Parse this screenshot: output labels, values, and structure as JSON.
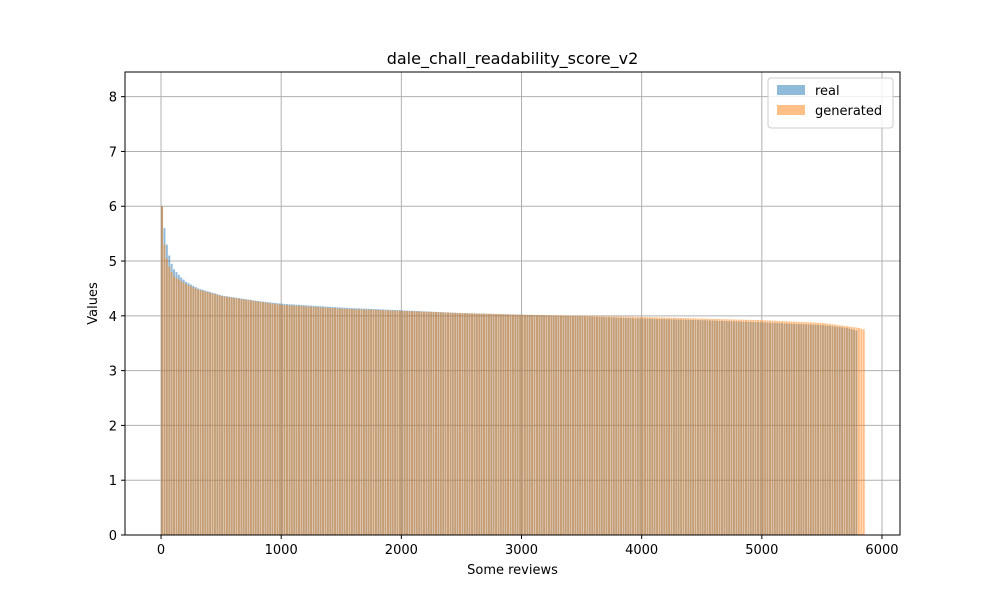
{
  "chart_data": {
    "type": "bar",
    "title": "dale_chall_readability_score_v2",
    "xlabel": "Some reviews",
    "ylabel": "Values",
    "xlim": [
      -300,
      6150
    ],
    "ylim": [
      0,
      8.45
    ],
    "xticks": [
      0,
      1000,
      2000,
      3000,
      4000,
      5000,
      6000
    ],
    "yticks": [
      0,
      1,
      2,
      3,
      4,
      5,
      6,
      7,
      8
    ],
    "grid": true,
    "legend_position": "top-right",
    "series": [
      {
        "name": "real",
        "color": "#1f77b4",
        "opacity": 0.5,
        "count": 5800,
        "points": [
          [
            0,
            6.0
          ],
          [
            20,
            5.6
          ],
          [
            40,
            5.3
          ],
          [
            60,
            5.1
          ],
          [
            80,
            4.95
          ],
          [
            100,
            4.85
          ],
          [
            150,
            4.72
          ],
          [
            200,
            4.62
          ],
          [
            300,
            4.5
          ],
          [
            500,
            4.37
          ],
          [
            800,
            4.27
          ],
          [
            1000,
            4.22
          ],
          [
            1500,
            4.15
          ],
          [
            2000,
            4.1
          ],
          [
            2500,
            4.05
          ],
          [
            3000,
            4.02
          ],
          [
            3500,
            3.99
          ],
          [
            4000,
            3.95
          ],
          [
            4500,
            3.92
          ],
          [
            5000,
            3.88
          ],
          [
            5500,
            3.83
          ],
          [
            5700,
            3.78
          ],
          [
            5799,
            3.72
          ]
        ]
      },
      {
        "name": "generated",
        "color": "#ff7f0e",
        "opacity": 0.5,
        "count": 5860,
        "points": [
          [
            0,
            6.0
          ],
          [
            20,
            5.3
          ],
          [
            40,
            5.05
          ],
          [
            60,
            4.9
          ],
          [
            80,
            4.8
          ],
          [
            100,
            4.72
          ],
          [
            150,
            4.65
          ],
          [
            200,
            4.58
          ],
          [
            300,
            4.48
          ],
          [
            500,
            4.36
          ],
          [
            800,
            4.26
          ],
          [
            1000,
            4.2
          ],
          [
            1500,
            4.13
          ],
          [
            2000,
            4.09
          ],
          [
            2500,
            4.05
          ],
          [
            3000,
            4.02
          ],
          [
            3500,
            4.0
          ],
          [
            4000,
            3.98
          ],
          [
            4500,
            3.95
          ],
          [
            5000,
            3.92
          ],
          [
            5500,
            3.87
          ],
          [
            5800,
            3.78
          ],
          [
            5845,
            3.75
          ],
          [
            5855,
            0.05
          ],
          [
            5859,
            0.03
          ]
        ]
      }
    ]
  }
}
